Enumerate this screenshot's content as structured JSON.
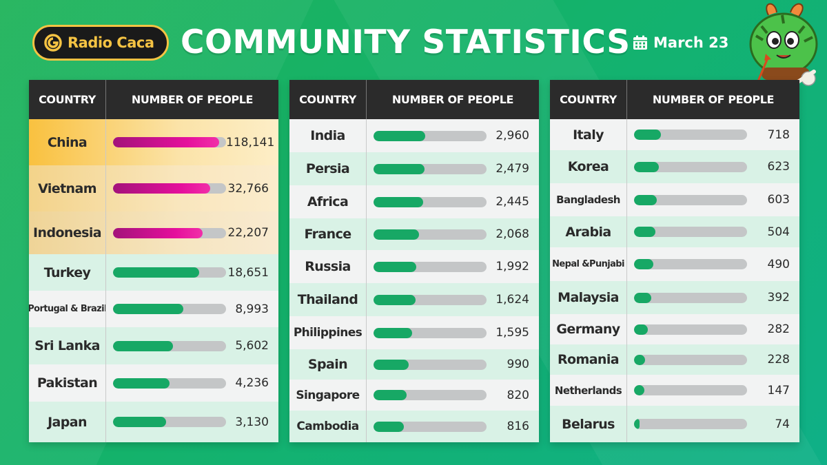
{
  "header": {
    "brand": "Radio Caca",
    "title": "COMMUNITY STATISTICS",
    "date": "March 23"
  },
  "table_headers": {
    "country": "COUNTRY",
    "number": "NUMBER OF PEOPLE"
  },
  "colors": {
    "bar_green": "#17a865",
    "bar_pink": "#e5109c",
    "logo_gold": "#f5c343",
    "header_dark": "#2b2b2b"
  },
  "tables": [
    {
      "rows": [
        {
          "country": "China",
          "value": "118,141",
          "fill": 0.94,
          "style": "gold1",
          "bar": "pink"
        },
        {
          "country": "Vietnam",
          "value": "32,766",
          "fill": 0.86,
          "style": "gold2",
          "bar": "pink"
        },
        {
          "country": "Indonesia",
          "value": "22,207",
          "fill": 0.79,
          "style": "gold3",
          "bar": "pink"
        },
        {
          "country": "Turkey",
          "value": "18,651",
          "fill": 0.76,
          "style": "even",
          "bar": "green"
        },
        {
          "country": "Portugal & Brazil",
          "value": "8,993",
          "fill": 0.62,
          "style": "odd",
          "bar": "green",
          "small": true
        },
        {
          "country": "Sri Lanka",
          "value": "5,602",
          "fill": 0.53,
          "style": "even",
          "bar": "green"
        },
        {
          "country": "Pakistan",
          "value": "4,236",
          "fill": 0.5,
          "style": "odd",
          "bar": "green"
        },
        {
          "country": "Japan",
          "value": "3,130",
          "fill": 0.47,
          "style": "even",
          "bar": "green"
        }
      ]
    },
    {
      "rows": [
        {
          "country": "India",
          "value": "2,960",
          "fill": 0.46,
          "style": "odd",
          "bar": "green"
        },
        {
          "country": "Persia",
          "value": "2,479",
          "fill": 0.45,
          "style": "even",
          "bar": "green"
        },
        {
          "country": "Africa",
          "value": "2,445",
          "fill": 0.44,
          "style": "odd",
          "bar": "green"
        },
        {
          "country": "France",
          "value": "2,068",
          "fill": 0.4,
          "style": "even",
          "bar": "green"
        },
        {
          "country": "Russia",
          "value": "1,992",
          "fill": 0.38,
          "style": "odd",
          "bar": "green"
        },
        {
          "country": "Thailand",
          "value": "1,624",
          "fill": 0.37,
          "style": "even",
          "bar": "green"
        },
        {
          "country": "Philippines",
          "value": "1,595",
          "fill": 0.34,
          "style": "odd",
          "bar": "green",
          "medium": true
        },
        {
          "country": "Spain",
          "value": "990",
          "fill": 0.31,
          "style": "even",
          "bar": "green"
        },
        {
          "country": "Singapore",
          "value": "820",
          "fill": 0.29,
          "style": "odd",
          "bar": "green",
          "medium": true
        },
        {
          "country": "Cambodia",
          "value": "816",
          "fill": 0.27,
          "style": "even",
          "bar": "green",
          "medium": true
        }
      ]
    },
    {
      "rows": [
        {
          "country": "Italy",
          "value": "718",
          "fill": 0.24,
          "style": "odd",
          "bar": "green"
        },
        {
          "country": "Korea",
          "value": "623",
          "fill": 0.22,
          "style": "even",
          "bar": "green"
        },
        {
          "country": "Bangladesh",
          "value": "603",
          "fill": 0.2,
          "style": "odd",
          "bar": "green",
          "small": true,
          "smallish": true
        },
        {
          "country": "Arabia",
          "value": "504",
          "fill": 0.19,
          "style": "even",
          "bar": "green"
        },
        {
          "country": "Nepal &Punjabi",
          "value": "490",
          "fill": 0.17,
          "style": "odd",
          "bar": "green",
          "small": true
        },
        {
          "country": "Malaysia",
          "value": "392",
          "fill": 0.15,
          "style": "even",
          "bar": "green"
        },
        {
          "country": "Germany",
          "value": "282",
          "fill": 0.12,
          "style": "odd",
          "bar": "green"
        },
        {
          "country": "Romania",
          "value": "228",
          "fill": 0.1,
          "style": "even",
          "bar": "green"
        },
        {
          "country": "Netherlands",
          "value": "147",
          "fill": 0.09,
          "style": "odd",
          "bar": "green",
          "small": true,
          "smallish": true
        },
        {
          "country": "Belarus",
          "value": "74",
          "fill": 0.05,
          "style": "even",
          "bar": "green"
        }
      ]
    }
  ]
}
